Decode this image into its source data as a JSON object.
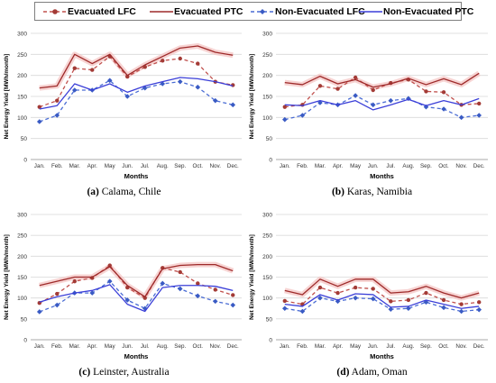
{
  "legend": {
    "items": [
      {
        "label": "Evacuated LFC",
        "series": "evac_lfc"
      },
      {
        "label": "Evacuated PTC",
        "series": "evac_ptc"
      },
      {
        "label": "Non-Evacuated LFC",
        "series": "nonevac_lfc"
      },
      {
        "label": "Non-Evacuated PTC",
        "series": "nonevac_ptc"
      }
    ]
  },
  "series_styles": {
    "evac_lfc": {
      "name": "Evacuated LFC",
      "color": "#c0504d",
      "dash": true,
      "marker": "circle"
    },
    "evac_ptc": {
      "name": "Evacuated PTC",
      "color": "#9e2a2a",
      "dash": false,
      "marker": "none"
    },
    "nonevac_lfc": {
      "name": "Non-Evacuated LFC",
      "color": "#4a6cd4",
      "dash": true,
      "marker": "diamond"
    },
    "nonevac_ptc": {
      "name": "Non-Evacuated PTC",
      "color": "#3b3fd8",
      "dash": false,
      "marker": "none"
    },
    "band_color": "#f4c6c4"
  },
  "chart_data": [
    {
      "type": "line",
      "id": "calama",
      "caption_bold": "(a)",
      "caption_text": " Calama, Chile",
      "ylabel": "Net Energy Yield [MWh/month]",
      "xlabel": "Months",
      "categories": [
        "Jan.",
        "Feb.",
        "Mar.",
        "Apr.",
        "May",
        "Jun.",
        "Jul.",
        "Aug.",
        "Sep.",
        "Oct.",
        "Nov.",
        "Dec."
      ],
      "ylim": [
        0,
        300
      ],
      "yticks": [
        0,
        50,
        100,
        150,
        200,
        250,
        300
      ],
      "grid": true,
      "series": [
        {
          "key": "evac_lfc",
          "values": [
            125,
            140,
            217,
            213,
            245,
            197,
            220,
            235,
            240,
            228,
            185,
            177
          ]
        },
        {
          "key": "evac_ptc",
          "values": [
            170,
            175,
            250,
            228,
            250,
            200,
            225,
            245,
            265,
            270,
            255,
            248
          ]
        },
        {
          "key": "nonevac_lfc",
          "values": [
            90,
            105,
            165,
            165,
            188,
            150,
            170,
            180,
            185,
            172,
            140,
            130
          ]
        },
        {
          "key": "nonevac_ptc",
          "values": [
            120,
            128,
            180,
            165,
            180,
            160,
            175,
            185,
            195,
            192,
            185,
            175
          ]
        }
      ]
    },
    {
      "type": "line",
      "id": "karas",
      "caption_bold": "(b)",
      "caption_text": " Karas, Namibia",
      "ylabel": "Net Energy Yield [MWh/month]",
      "xlabel": "Months",
      "categories": [
        "Jan.",
        "Feb.",
        "Mar.",
        "Apr.",
        "May",
        "Jun.",
        "Jul.",
        "Aug.",
        "Sep.",
        "Oct.",
        "Nov.",
        "Dec."
      ],
      "ylim": [
        0,
        300
      ],
      "yticks": [
        0,
        50,
        100,
        150,
        200,
        250,
        300
      ],
      "grid": true,
      "series": [
        {
          "key": "evac_lfc",
          "values": [
            125,
            130,
            175,
            168,
            195,
            165,
            182,
            190,
            162,
            160,
            130,
            133
          ]
        },
        {
          "key": "evac_ptc",
          "values": [
            183,
            178,
            198,
            180,
            190,
            172,
            180,
            193,
            178,
            192,
            178,
            205
          ]
        },
        {
          "key": "nonevac_lfc",
          "values": [
            95,
            105,
            135,
            130,
            152,
            130,
            140,
            145,
            125,
            120,
            100,
            105
          ]
        },
        {
          "key": "nonevac_ptc",
          "values": [
            130,
            128,
            140,
            130,
            140,
            118,
            130,
            143,
            128,
            140,
            130,
            145
          ]
        }
      ]
    },
    {
      "type": "line",
      "id": "leinster",
      "caption_bold": "(c)",
      "caption_text": " Leinster, Australia",
      "ylabel": "Net Energy Yield [MWh/month]",
      "xlabel": "Months",
      "categories": [
        "Jan.",
        "Feb.",
        "Mar.",
        "Apr.",
        "May",
        "Jun.",
        "Jul.",
        "Aug.",
        "Sep.",
        "Oct.",
        "Nov.",
        "Dec."
      ],
      "ylim": [
        0,
        300
      ],
      "yticks": [
        0,
        50,
        100,
        150,
        200,
        250,
        300
      ],
      "grid": true,
      "series": [
        {
          "key": "evac_lfc",
          "values": [
            88,
            110,
            140,
            148,
            178,
            125,
            100,
            172,
            162,
            135,
            120,
            107
          ]
        },
        {
          "key": "evac_ptc",
          "values": [
            130,
            140,
            150,
            150,
            175,
            130,
            103,
            170,
            178,
            180,
            180,
            165
          ]
        },
        {
          "key": "nonevac_lfc",
          "values": [
            67,
            83,
            112,
            112,
            140,
            95,
            75,
            135,
            122,
            105,
            92,
            83
          ]
        },
        {
          "key": "nonevac_ptc",
          "values": [
            90,
            103,
            112,
            118,
            132,
            85,
            68,
            125,
            130,
            130,
            128,
            118
          ]
        }
      ]
    },
    {
      "type": "line",
      "id": "adam",
      "caption_bold": "(d)",
      "caption_text": " Adam, Oman",
      "ylabel": "Net Energy Yield [MWh/month]",
      "xlabel": "Months",
      "categories": [
        "Jan.",
        "Feb.",
        "Mar.",
        "Apr.",
        "May",
        "Jun.",
        "Jul.",
        "Aug.",
        "Sep.",
        "Oct.",
        "Nov.",
        "Dec."
      ],
      "ylim": [
        0,
        300
      ],
      "yticks": [
        0,
        50,
        100,
        150,
        200,
        250,
        300
      ],
      "grid": true,
      "series": [
        {
          "key": "evac_lfc",
          "values": [
            93,
            85,
            125,
            112,
            125,
            122,
            92,
            95,
            112,
            95,
            85,
            90
          ]
        },
        {
          "key": "evac_ptc",
          "values": [
            118,
            108,
            145,
            128,
            145,
            145,
            112,
            115,
            128,
            112,
            100,
            112
          ]
        },
        {
          "key": "nonevac_lfc",
          "values": [
            75,
            68,
            100,
            92,
            100,
            98,
            73,
            75,
            90,
            77,
            68,
            72
          ]
        },
        {
          "key": "nonevac_ptc",
          "values": [
            85,
            80,
            108,
            95,
            110,
            108,
            78,
            80,
            95,
            85,
            75,
            80
          ]
        }
      ]
    }
  ]
}
